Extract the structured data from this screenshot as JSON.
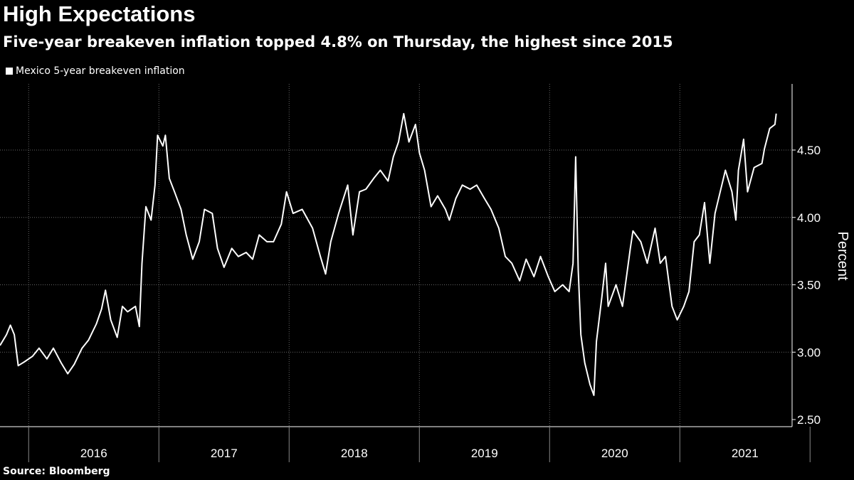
{
  "title": "High Expectations",
  "subtitle": "Five-year breakeven inflation topped 4.8% on Thursday, the highest since 2015",
  "source": "Source: Bloomberg",
  "chart_data": {
    "type": "line",
    "title": "High Expectations",
    "xlabel": "",
    "ylabel": "Percent",
    "ylim": [
      2.5,
      4.75
    ],
    "xlim": [
      2015.78,
      2021.82
    ],
    "grid": true,
    "legend_position": "top-left",
    "y_ticks": [
      2.5,
      3.0,
      3.5,
      4.0,
      4.5
    ],
    "y_tick_labels": [
      "2.50",
      "3.00",
      "3.50",
      "4.00",
      "4.50"
    ],
    "x_tick_labels": [
      "2016",
      "2017",
      "2018",
      "2019",
      "2020",
      "2021"
    ],
    "series": [
      {
        "name": "Mexico 5-year breakeven inflation",
        "color": "#ffffff",
        "x": [
          2015.78,
          2015.83,
          2015.86,
          2015.89,
          2015.92,
          2015.97,
          2016.03,
          2016.08,
          2016.14,
          2016.19,
          2016.25,
          2016.3,
          2016.35,
          2016.41,
          2016.46,
          2016.52,
          2016.56,
          2016.59,
          2016.63,
          2016.68,
          2016.72,
          2016.76,
          2016.82,
          2016.85,
          2016.87,
          2016.9,
          2016.94,
          2016.97,
          2016.99,
          2017.03,
          2017.05,
          2017.08,
          2017.12,
          2017.17,
          2017.21,
          2017.26,
          2017.31,
          2017.35,
          2017.41,
          2017.45,
          2017.5,
          2017.56,
          2017.61,
          2017.67,
          2017.72,
          2017.77,
          2017.83,
          2017.88,
          2017.94,
          2017.98,
          2018.03,
          2018.1,
          2018.18,
          2018.24,
          2018.28,
          2018.32,
          2018.38,
          2018.45,
          2018.49,
          2018.54,
          2018.59,
          2018.65,
          2018.7,
          2018.76,
          2018.8,
          2018.84,
          2018.88,
          2018.92,
          2018.97,
          2019.0,
          2019.04,
          2019.09,
          2019.14,
          2019.2,
          2019.23,
          2019.28,
          2019.33,
          2019.39,
          2019.44,
          2019.5,
          2019.55,
          2019.61,
          2019.66,
          2019.71,
          2019.77,
          2019.82,
          2019.88,
          2019.93,
          2019.99,
          2020.04,
          2020.1,
          2020.15,
          2020.18,
          2020.2,
          2020.22,
          2020.24,
          2020.27,
          2020.31,
          2020.34,
          2020.36,
          2020.4,
          2020.43,
          2020.45,
          2020.51,
          2020.56,
          2020.62,
          2020.64,
          2020.7,
          2020.75,
          2020.81,
          2020.85,
          2020.89,
          2020.94,
          2020.98,
          2021.03,
          2021.07,
          2021.11,
          2021.15,
          2021.19,
          2021.23,
          2021.27,
          2021.31,
          2021.35,
          2021.4,
          2021.43,
          2021.45,
          2021.49,
          2021.52,
          2021.57,
          2021.63,
          2021.65,
          2021.69,
          2021.73,
          2021.74
        ],
        "values": [
          3.05,
          3.13,
          3.2,
          3.13,
          2.9,
          2.93,
          2.97,
          3.03,
          2.95,
          3.03,
          2.92,
          2.84,
          2.91,
          3.03,
          3.09,
          3.21,
          3.32,
          3.46,
          3.24,
          3.11,
          3.34,
          3.3,
          3.34,
          3.19,
          3.66,
          4.08,
          3.98,
          4.24,
          4.61,
          4.53,
          4.61,
          4.29,
          4.19,
          4.06,
          3.87,
          3.69,
          3.82,
          4.06,
          4.03,
          3.77,
          3.63,
          3.77,
          3.71,
          3.74,
          3.69,
          3.87,
          3.82,
          3.82,
          3.95,
          4.19,
          4.03,
          4.06,
          3.92,
          3.71,
          3.58,
          3.82,
          4.03,
          4.24,
          3.87,
          4.19,
          4.21,
          4.29,
          4.35,
          4.27,
          4.45,
          4.56,
          4.77,
          4.56,
          4.69,
          4.48,
          4.35,
          4.08,
          4.16,
          4.06,
          3.98,
          4.14,
          4.24,
          4.21,
          4.24,
          4.14,
          4.06,
          3.92,
          3.71,
          3.66,
          3.53,
          3.69,
          3.56,
          3.71,
          3.56,
          3.45,
          3.5,
          3.45,
          3.66,
          4.45,
          3.61,
          3.13,
          2.92,
          2.76,
          2.68,
          3.08,
          3.4,
          3.66,
          3.34,
          3.5,
          3.34,
          3.77,
          3.9,
          3.82,
          3.66,
          3.92,
          3.66,
          3.71,
          3.34,
          3.24,
          3.34,
          3.45,
          3.82,
          3.87,
          4.11,
          3.66,
          4.03,
          4.19,
          4.35,
          4.19,
          3.98,
          4.35,
          4.58,
          4.19,
          4.37,
          4.4,
          4.51,
          4.66,
          4.69,
          4.77
        ]
      }
    ]
  }
}
